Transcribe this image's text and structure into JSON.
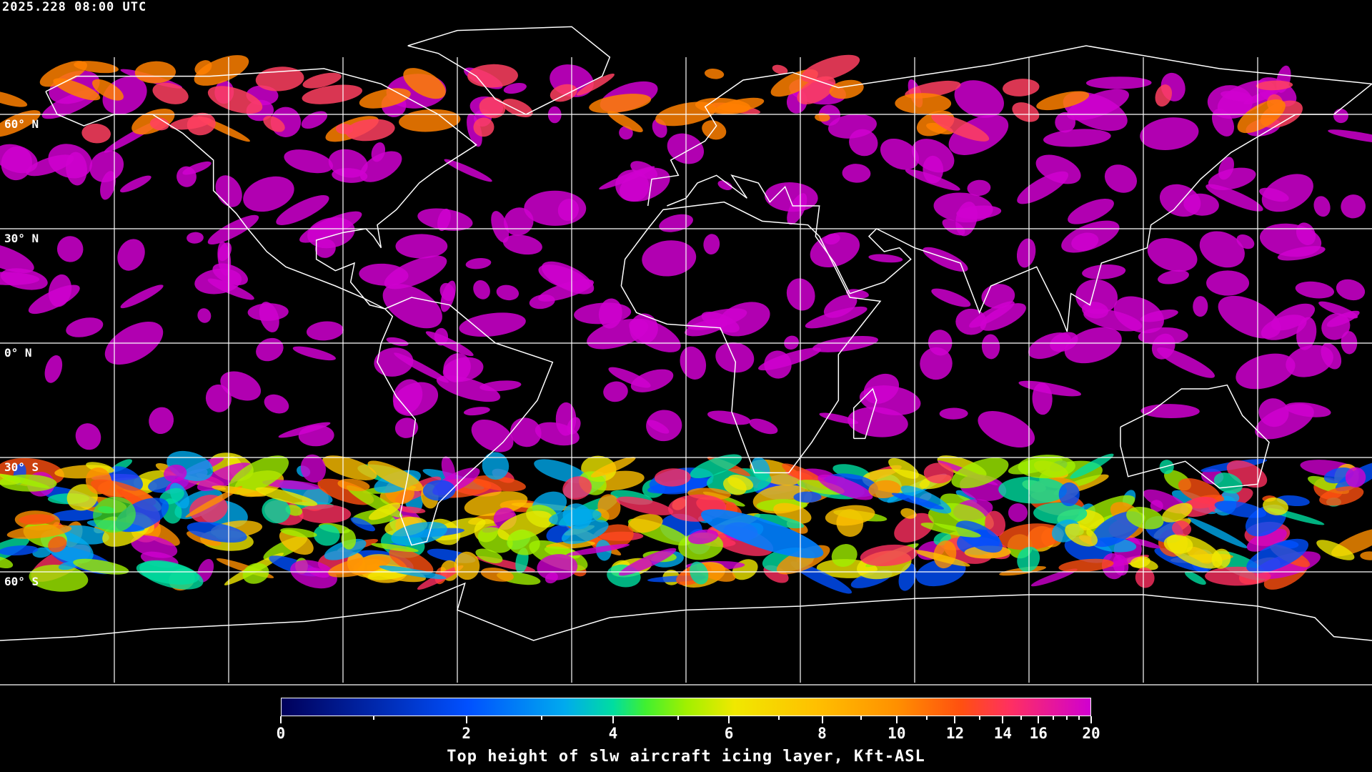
{
  "timestamp": "2025.228 08:00 UTC",
  "projection": "equirectangular",
  "grid": {
    "lon_step_deg": 30,
    "lat_step_deg": 30
  },
  "lat_labels": [
    "60° N",
    "30° N",
    "0° N",
    "30° S",
    "60° S"
  ],
  "colorbar": {
    "title": "Top height of slw aircraft icing layer, Kft-ASL",
    "tick_labels": [
      "0",
      "2",
      "4",
      "6",
      "8",
      "10",
      "12",
      "14",
      "16",
      "20"
    ],
    "range": [
      0,
      20
    ],
    "colors": [
      "#00005a",
      "#0050ff",
      "#00aaee",
      "#00dda0",
      "#40f030",
      "#a0f000",
      "#f0e800",
      "#ffc000",
      "#ff9000",
      "#ff5010",
      "#ff3060",
      "#d000d0"
    ]
  },
  "colors": {
    "background": "#000000",
    "grid": "#ffffff",
    "coastline": "#ffffff",
    "dominant_field": "#d000d0"
  }
}
